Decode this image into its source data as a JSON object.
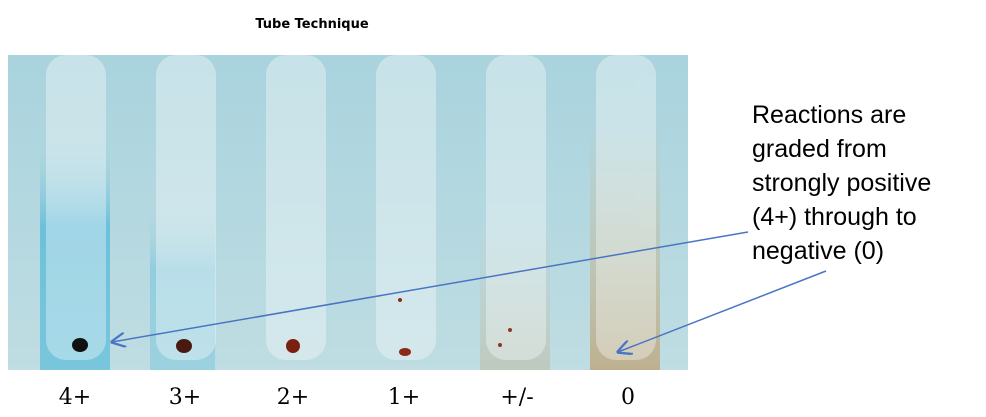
{
  "header": {
    "title": "Tube Technique"
  },
  "tubes": [
    {
      "label": "4+"
    },
    {
      "label": "3+"
    },
    {
      "label": "2+"
    },
    {
      "label": "1+"
    },
    {
      "label": "+/-"
    },
    {
      "label": "0"
    }
  ],
  "annotation": {
    "lines": [
      "Reactions are",
      "graded from",
      "strongly positive",
      "(4+) through to",
      "negative (0)"
    ]
  }
}
